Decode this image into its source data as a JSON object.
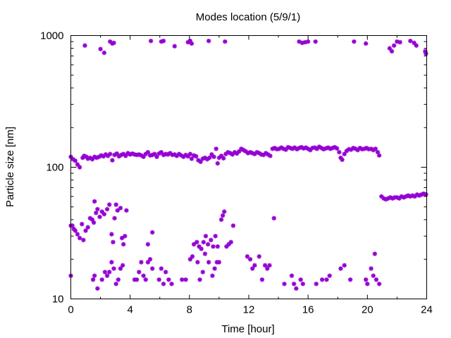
{
  "chart_data": {
    "type": "scatter",
    "title": "Modes location (5/9/1)",
    "xlabel": "Time [hour]",
    "ylabel": "Particle size [nm]",
    "xlim": [
      0,
      24
    ],
    "ylim": [
      10,
      1000
    ],
    "yscale": "log",
    "grid": false,
    "legend": "none",
    "x_ticks": [
      0,
      4,
      8,
      12,
      16,
      20,
      24
    ],
    "x_tick_labels": [
      "0",
      "4",
      "8",
      "12",
      "16",
      "20",
      "24"
    ],
    "y_ticks": [
      10,
      100,
      1000
    ],
    "y_tick_labels": [
      "10",
      "100",
      "1000"
    ],
    "marker": "asterisk",
    "color": "#9400d3",
    "points": [
      [
        0.95,
        840
      ],
      [
        2.0,
        790
      ],
      [
        2.25,
        740
      ],
      [
        2.65,
        900
      ],
      [
        2.8,
        870
      ],
      [
        2.9,
        880
      ],
      [
        5.4,
        910
      ],
      [
        6.1,
        900
      ],
      [
        6.25,
        910
      ],
      [
        7.0,
        830
      ],
      [
        7.9,
        890
      ],
      [
        8.05,
        910
      ],
      [
        8.15,
        870
      ],
      [
        9.3,
        910
      ],
      [
        10.4,
        900
      ],
      [
        15.4,
        900
      ],
      [
        15.6,
        880
      ],
      [
        15.8,
        890
      ],
      [
        16.0,
        900
      ],
      [
        16.5,
        900
      ],
      [
        19.1,
        900
      ],
      [
        19.9,
        870
      ],
      [
        21.5,
        800
      ],
      [
        21.65,
        760
      ],
      [
        21.8,
        840
      ],
      [
        22.0,
        900
      ],
      [
        22.2,
        890
      ],
      [
        22.9,
        910
      ],
      [
        23.15,
        880
      ],
      [
        23.3,
        840
      ],
      [
        23.9,
        760
      ],
      [
        23.95,
        730
      ],
      [
        0.0,
        120
      ],
      [
        0.15,
        115
      ],
      [
        0.3,
        112
      ],
      [
        0.45,
        105
      ],
      [
        0.6,
        100
      ],
      [
        0.8,
        118
      ],
      [
        0.9,
        122
      ],
      [
        1.05,
        120
      ],
      [
        1.15,
        116
      ],
      [
        1.3,
        118
      ],
      [
        1.45,
        115
      ],
      [
        1.6,
        120
      ],
      [
        1.75,
        118
      ],
      [
        1.9,
        120
      ],
      [
        2.05,
        123
      ],
      [
        2.2,
        121
      ],
      [
        2.35,
        125
      ],
      [
        2.5,
        122
      ],
      [
        2.65,
        126
      ],
      [
        2.8,
        113
      ],
      [
        2.95,
        124
      ],
      [
        3.1,
        127
      ],
      [
        3.25,
        121
      ],
      [
        3.4,
        124
      ],
      [
        3.55,
        126
      ],
      [
        3.7,
        122
      ],
      [
        3.85,
        128
      ],
      [
        4.0,
        125
      ],
      [
        4.15,
        127
      ],
      [
        4.3,
        125
      ],
      [
        4.45,
        124
      ],
      [
        4.6,
        125
      ],
      [
        4.75,
        123
      ],
      [
        4.9,
        120
      ],
      [
        5.05,
        126
      ],
      [
        5.2,
        130
      ],
      [
        5.35,
        123
      ],
      [
        5.5,
        124
      ],
      [
        5.65,
        126
      ],
      [
        5.8,
        120
      ],
      [
        5.95,
        127
      ],
      [
        6.1,
        130
      ],
      [
        6.25,
        124
      ],
      [
        6.4,
        126
      ],
      [
        6.55,
        125
      ],
      [
        6.7,
        128
      ],
      [
        6.85,
        124
      ],
      [
        7.0,
        125
      ],
      [
        7.15,
        122
      ],
      [
        7.3,
        126
      ],
      [
        7.45,
        123
      ],
      [
        7.6,
        120
      ],
      [
        7.75,
        124
      ],
      [
        7.9,
        121
      ],
      [
        8.05,
        126
      ],
      [
        8.15,
        116
      ],
      [
        8.3,
        123
      ],
      [
        8.45,
        121
      ],
      [
        8.6,
        113
      ],
      [
        8.75,
        110
      ],
      [
        8.9,
        116
      ],
      [
        9.05,
        118
      ],
      [
        9.2,
        115
      ],
      [
        9.35,
        118
      ],
      [
        9.5,
        125
      ],
      [
        9.65,
        120
      ],
      [
        9.8,
        138
      ],
      [
        9.9,
        107
      ],
      [
        10.0,
        118
      ],
      [
        10.15,
        122
      ],
      [
        10.3,
        117
      ],
      [
        10.45,
        126
      ],
      [
        10.6,
        130
      ],
      [
        10.75,
        128
      ],
      [
        10.9,
        125
      ],
      [
        11.05,
        130
      ],
      [
        11.2,
        127
      ],
      [
        11.35,
        132
      ],
      [
        11.5,
        138
      ],
      [
        11.65,
        135
      ],
      [
        11.8,
        132
      ],
      [
        11.95,
        128
      ],
      [
        12.1,
        130
      ],
      [
        12.25,
        128
      ],
      [
        12.4,
        126
      ],
      [
        12.55,
        130
      ],
      [
        12.7,
        128
      ],
      [
        12.85,
        125
      ],
      [
        13.0,
        124
      ],
      [
        13.15,
        128
      ],
      [
        13.3,
        125
      ],
      [
        13.45,
        122
      ],
      [
        13.6,
        138
      ],
      [
        13.75,
        140
      ],
      [
        13.9,
        137
      ],
      [
        14.05,
        138
      ],
      [
        14.2,
        141
      ],
      [
        14.35,
        138
      ],
      [
        14.5,
        136
      ],
      [
        14.65,
        142
      ],
      [
        14.8,
        140
      ],
      [
        14.95,
        138
      ],
      [
        15.1,
        141
      ],
      [
        15.25,
        137
      ],
      [
        15.4,
        140
      ],
      [
        15.55,
        142
      ],
      [
        15.7,
        139
      ],
      [
        15.85,
        141
      ],
      [
        16.0,
        138
      ],
      [
        16.15,
        135
      ],
      [
        16.3,
        140
      ],
      [
        16.45,
        141
      ],
      [
        16.6,
        138
      ],
      [
        16.75,
        143
      ],
      [
        16.9,
        140
      ],
      [
        17.05,
        137
      ],
      [
        17.2,
        139
      ],
      [
        17.35,
        141
      ],
      [
        17.5,
        138
      ],
      [
        17.65,
        140
      ],
      [
        17.8,
        142
      ],
      [
        17.95,
        139
      ],
      [
        18.1,
        130
      ],
      [
        18.2,
        118
      ],
      [
        18.3,
        114
      ],
      [
        18.45,
        126
      ],
      [
        18.6,
        133
      ],
      [
        18.75,
        137
      ],
      [
        18.9,
        136
      ],
      [
        19.05,
        140
      ],
      [
        19.2,
        138
      ],
      [
        19.35,
        135
      ],
      [
        19.5,
        140
      ],
      [
        19.65,
        137
      ],
      [
        19.8,
        138
      ],
      [
        19.95,
        140
      ],
      [
        20.1,
        137
      ],
      [
        20.25,
        138
      ],
      [
        20.4,
        135
      ],
      [
        20.55,
        138
      ],
      [
        20.7,
        130
      ],
      [
        20.8,
        123
      ],
      [
        0.0,
        36
      ],
      [
        0.1,
        36
      ],
      [
        0.2,
        34
      ],
      [
        0.3,
        33
      ],
      [
        0.45,
        31
      ],
      [
        0.6,
        29
      ],
      [
        0.75,
        37
      ],
      [
        0.85,
        28
      ],
      [
        1.0,
        33
      ],
      [
        1.15,
        35
      ],
      [
        1.3,
        41
      ],
      [
        1.45,
        40
      ],
      [
        1.55,
        38
      ],
      [
        1.6,
        55
      ],
      [
        1.7,
        45
      ],
      [
        1.8,
        48
      ],
      [
        1.95,
        42
      ],
      [
        2.1,
        46
      ],
      [
        2.25,
        44
      ],
      [
        2.45,
        48
      ],
      [
        2.6,
        52
      ],
      [
        2.75,
        31
      ],
      [
        2.85,
        27
      ],
      [
        2.95,
        41
      ],
      [
        3.05,
        52
      ],
      [
        3.15,
        47
      ],
      [
        3.35,
        49
      ],
      [
        3.45,
        29
      ],
      [
        3.55,
        26
      ],
      [
        3.65,
        30
      ],
      [
        3.75,
        47
      ],
      [
        5.5,
        32
      ],
      [
        5.2,
        26
      ],
      [
        8.3,
        26
      ],
      [
        8.5,
        27
      ],
      [
        8.65,
        25
      ],
      [
        8.8,
        24
      ],
      [
        8.95,
        27
      ],
      [
        9.1,
        30
      ],
      [
        9.25,
        26
      ],
      [
        9.45,
        28
      ],
      [
        9.6,
        25
      ],
      [
        9.75,
        30
      ],
      [
        9.9,
        25
      ],
      [
        10.15,
        40
      ],
      [
        10.25,
        43
      ],
      [
        10.35,
        46
      ],
      [
        10.5,
        25
      ],
      [
        10.65,
        26
      ],
      [
        10.8,
        27
      ],
      [
        10.95,
        36
      ],
      [
        13.7,
        41
      ],
      [
        20.5,
        22
      ],
      [
        20.95,
        60
      ],
      [
        21.1,
        58
      ],
      [
        21.25,
        57
      ],
      [
        21.4,
        58
      ],
      [
        21.55,
        59
      ],
      [
        21.7,
        58
      ],
      [
        21.85,
        59
      ],
      [
        22.0,
        59
      ],
      [
        22.15,
        58
      ],
      [
        22.3,
        60
      ],
      [
        22.45,
        59
      ],
      [
        22.6,
        60
      ],
      [
        22.75,
        61
      ],
      [
        22.9,
        60
      ],
      [
        23.05,
        61
      ],
      [
        23.2,
        60
      ],
      [
        23.35,
        62
      ],
      [
        23.5,
        61
      ],
      [
        23.65,
        62
      ],
      [
        23.8,
        63
      ],
      [
        23.95,
        62
      ],
      [
        0.0,
        15
      ],
      [
        1.5,
        14
      ],
      [
        1.6,
        15
      ],
      [
        1.8,
        12
      ],
      [
        2.1,
        14
      ],
      [
        2.3,
        16
      ],
      [
        2.45,
        15
      ],
      [
        2.6,
        16
      ],
      [
        2.75,
        19
      ],
      [
        2.9,
        17
      ],
      [
        3.05,
        13
      ],
      [
        3.2,
        14
      ],
      [
        3.35,
        17
      ],
      [
        3.5,
        18
      ],
      [
        4.3,
        14
      ],
      [
        4.45,
        14
      ],
      [
        4.6,
        16
      ],
      [
        4.75,
        19
      ],
      [
        4.9,
        15
      ],
      [
        5.05,
        14
      ],
      [
        5.2,
        19
      ],
      [
        5.35,
        20
      ],
      [
        5.5,
        17
      ],
      [
        5.95,
        14
      ],
      [
        6.1,
        17
      ],
      [
        6.25,
        13
      ],
      [
        6.4,
        16
      ],
      [
        6.6,
        14
      ],
      [
        6.8,
        13
      ],
      [
        7.5,
        14
      ],
      [
        7.75,
        14
      ],
      [
        8.05,
        20
      ],
      [
        8.2,
        21
      ],
      [
        8.55,
        19
      ],
      [
        8.7,
        14
      ],
      [
        8.9,
        16
      ],
      [
        9.05,
        22
      ],
      [
        9.3,
        19
      ],
      [
        9.55,
        15
      ],
      [
        9.7,
        17
      ],
      [
        9.85,
        19
      ],
      [
        10.0,
        19
      ],
      [
        11.9,
        21
      ],
      [
        12.1,
        20
      ],
      [
        12.25,
        17
      ],
      [
        12.4,
        18
      ],
      [
        12.7,
        21
      ],
      [
        12.9,
        14
      ],
      [
        13.1,
        18
      ],
      [
        13.25,
        17
      ],
      [
        13.4,
        18
      ],
      [
        14.4,
        13
      ],
      [
        14.9,
        15
      ],
      [
        15.05,
        13
      ],
      [
        15.2,
        12
      ],
      [
        15.5,
        14
      ],
      [
        15.65,
        13
      ],
      [
        16.55,
        13
      ],
      [
        16.95,
        14
      ],
      [
        17.25,
        14
      ],
      [
        17.45,
        15
      ],
      [
        18.2,
        17
      ],
      [
        18.45,
        18
      ],
      [
        18.85,
        14
      ],
      [
        19.9,
        14
      ],
      [
        20.0,
        13
      ],
      [
        20.25,
        17
      ],
      [
        20.4,
        15
      ],
      [
        20.6,
        14
      ],
      [
        20.8,
        13
      ]
    ]
  }
}
